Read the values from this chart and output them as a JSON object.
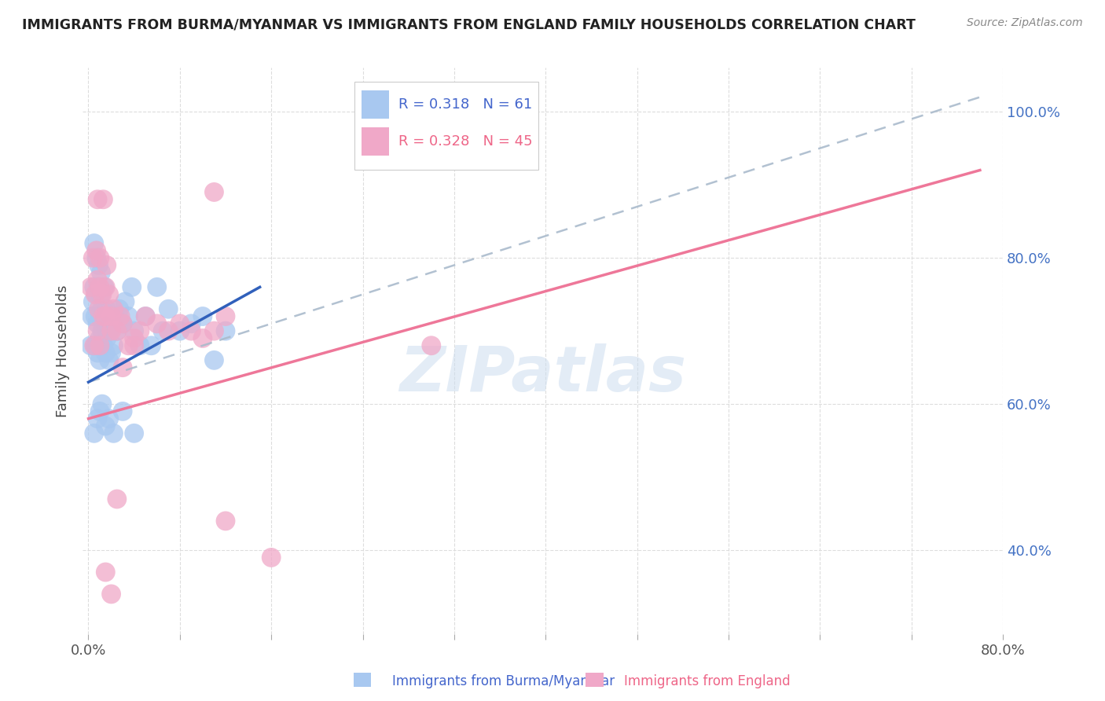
{
  "title": "IMMIGRANTS FROM BURMA/MYANMAR VS IMMIGRANTS FROM ENGLAND FAMILY HOUSEHOLDS CORRELATION CHART",
  "source": "Source: ZipAtlas.com",
  "ylabel": "Family Households",
  "xlabel_blue": "Immigrants from Burma/Myanmar",
  "xlabel_pink": "Immigrants from England",
  "blue_color": "#A8C8F0",
  "pink_color": "#F0A8C8",
  "blue_line_color": "#3060BB",
  "pink_line_color": "#EE7799",
  "dash_line_color": "#AABBCC",
  "ytick_color": "#4472C4",
  "xtick_color": "#555555",
  "legend_text_color": "#4466CC",
  "pink_legend_text_color": "#EE6688",
  "watermark_color": "#CCDDEF",
  "grid_color": "#DDDDDD",
  "background_color": "#ffffff",
  "title_color": "#222222",
  "source_color": "#888888",
  "ylabel_color": "#444444",
  "blue_x": [
    0.002,
    0.003,
    0.004,
    0.005,
    0.005,
    0.006,
    0.006,
    0.007,
    0.007,
    0.008,
    0.008,
    0.009,
    0.009,
    0.01,
    0.01,
    0.01,
    0.011,
    0.011,
    0.012,
    0.012,
    0.013,
    0.013,
    0.014,
    0.015,
    0.015,
    0.016,
    0.016,
    0.017,
    0.018,
    0.018,
    0.019,
    0.02,
    0.022,
    0.023,
    0.025,
    0.027,
    0.03,
    0.032,
    0.035,
    0.038,
    0.04,
    0.045,
    0.05,
    0.055,
    0.06,
    0.065,
    0.07,
    0.08,
    0.09,
    0.1,
    0.11,
    0.12,
    0.005,
    0.008,
    0.01,
    0.012,
    0.015,
    0.018,
    0.022,
    0.03,
    0.04
  ],
  "blue_y": [
    0.68,
    0.72,
    0.74,
    0.76,
    0.82,
    0.68,
    0.72,
    0.75,
    0.8,
    0.67,
    0.71,
    0.76,
    0.79,
    0.66,
    0.69,
    0.72,
    0.75,
    0.78,
    0.7,
    0.73,
    0.68,
    0.71,
    0.76,
    0.67,
    0.71,
    0.69,
    0.73,
    0.7,
    0.66,
    0.7,
    0.72,
    0.67,
    0.68,
    0.72,
    0.7,
    0.73,
    0.71,
    0.74,
    0.72,
    0.76,
    0.7,
    0.68,
    0.72,
    0.68,
    0.76,
    0.7,
    0.73,
    0.7,
    0.71,
    0.72,
    0.66,
    0.7,
    0.56,
    0.58,
    0.59,
    0.6,
    0.57,
    0.58,
    0.56,
    0.59,
    0.56
  ],
  "pink_x": [
    0.002,
    0.004,
    0.006,
    0.007,
    0.008,
    0.009,
    0.01,
    0.01,
    0.012,
    0.013,
    0.015,
    0.016,
    0.018,
    0.02,
    0.022,
    0.025,
    0.028,
    0.03,
    0.035,
    0.04,
    0.045,
    0.05,
    0.06,
    0.07,
    0.08,
    0.09,
    0.1,
    0.11,
    0.12,
    0.005,
    0.008,
    0.01,
    0.015,
    0.02,
    0.03,
    0.04,
    0.015,
    0.02,
    0.025,
    0.3,
    0.12,
    0.16,
    0.013,
    0.008,
    0.11
  ],
  "pink_y": [
    0.76,
    0.8,
    0.75,
    0.81,
    0.77,
    0.73,
    0.76,
    0.8,
    0.75,
    0.72,
    0.76,
    0.79,
    0.75,
    0.72,
    0.73,
    0.7,
    0.72,
    0.71,
    0.68,
    0.69,
    0.7,
    0.72,
    0.71,
    0.7,
    0.71,
    0.7,
    0.69,
    0.7,
    0.72,
    0.68,
    0.7,
    0.68,
    0.72,
    0.7,
    0.65,
    0.68,
    0.37,
    0.34,
    0.47,
    0.68,
    0.44,
    0.39,
    0.88,
    0.88,
    0.89
  ],
  "blue_line_x0": 0.0,
  "blue_line_x1": 0.15,
  "blue_line_y0": 0.63,
  "blue_line_y1": 0.76,
  "pink_line_x0": 0.0,
  "pink_line_x1": 0.78,
  "pink_line_y0": 0.58,
  "pink_line_y1": 0.92,
  "dash_line_x0": 0.0,
  "dash_line_x1": 0.78,
  "dash_line_y0": 0.63,
  "dash_line_y1": 1.02,
  "xlim": [
    -0.005,
    0.8
  ],
  "ylim": [
    0.285,
    1.06
  ],
  "yticks": [
    0.4,
    0.6,
    0.8,
    1.0
  ],
  "ytick_labels": [
    "40.0%",
    "60.0%",
    "80.0%",
    "100.0%"
  ],
  "xtick_left_label": "0.0%",
  "xtick_right_label": "80.0%",
  "xtick_positions": [
    0.0,
    0.08,
    0.16,
    0.24,
    0.32,
    0.4,
    0.48,
    0.56,
    0.64,
    0.72,
    0.8
  ],
  "legend_R_blue": "R = 0.318",
  "legend_N_blue": "N = 61",
  "legend_R_pink": "R = 0.328",
  "legend_N_pink": "N = 45",
  "watermark_text": "ZIPatlas"
}
